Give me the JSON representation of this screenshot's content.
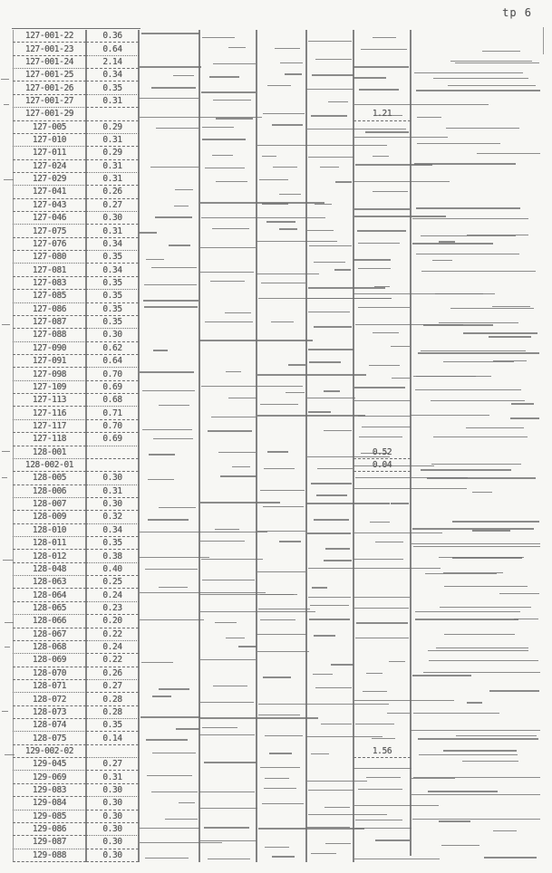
{
  "page": {
    "corner_label": "tp 6"
  },
  "colors": {
    "paper": "#f7f7f4",
    "ink": "#565656",
    "line": "#6f6f6f"
  },
  "table": {
    "extra_value_column": 7,
    "rows": [
      {
        "id": "127-001-22",
        "value": "0.36",
        "extra": ""
      },
      {
        "id": "127-001-23",
        "value": "0.64",
        "extra": ""
      },
      {
        "id": "127-001-24",
        "value": "2.14",
        "extra": ""
      },
      {
        "id": "127-001-25",
        "value": "0.34",
        "extra": ""
      },
      {
        "id": "127-001-26",
        "value": "0.35",
        "extra": ""
      },
      {
        "id": "127-001-27",
        "value": "0.31",
        "extra": ""
      },
      {
        "id": "127-001-29",
        "value": "",
        "extra": "1.21"
      },
      {
        "id": "127-005",
        "value": "0.29",
        "extra": ""
      },
      {
        "id": "127-010",
        "value": "0.31",
        "extra": ""
      },
      {
        "id": "127-011",
        "value": "0.29",
        "extra": ""
      },
      {
        "id": "127-024",
        "value": "0.31",
        "extra": ""
      },
      {
        "id": "127-029",
        "value": "0.31",
        "extra": ""
      },
      {
        "id": "127-041",
        "value": "0.26",
        "extra": ""
      },
      {
        "id": "127-043",
        "value": "0.27",
        "extra": ""
      },
      {
        "id": "127-046",
        "value": "0.30",
        "extra": ""
      },
      {
        "id": "127-075",
        "value": "0.31",
        "extra": ""
      },
      {
        "id": "127-076",
        "value": "0.34",
        "extra": ""
      },
      {
        "id": "127-080",
        "value": "0.35",
        "extra": ""
      },
      {
        "id": "127-081",
        "value": "0.34",
        "extra": ""
      },
      {
        "id": "127-083",
        "value": "0.35",
        "extra": ""
      },
      {
        "id": "127-085",
        "value": "0.35",
        "extra": ""
      },
      {
        "id": "127-086",
        "value": "0.35",
        "extra": ""
      },
      {
        "id": "127-087",
        "value": "0.35",
        "extra": ""
      },
      {
        "id": "127-088",
        "value": "0.30",
        "extra": ""
      },
      {
        "id": "127-090",
        "value": "0.62",
        "extra": ""
      },
      {
        "id": "127-091",
        "value": "0.64",
        "extra": ""
      },
      {
        "id": "127-098",
        "value": "0.70",
        "extra": ""
      },
      {
        "id": "127-109",
        "value": "0.69",
        "extra": ""
      },
      {
        "id": "127-113",
        "value": "0.68",
        "extra": ""
      },
      {
        "id": "127-116",
        "value": "0.71",
        "extra": ""
      },
      {
        "id": "127-117",
        "value": "0.70",
        "extra": ""
      },
      {
        "id": "127-118",
        "value": "0.69",
        "extra": ""
      },
      {
        "id": "128-001",
        "value": "",
        "extra": "0.52"
      },
      {
        "id": "128-002-01",
        "value": "",
        "extra": "0.04"
      },
      {
        "id": "128-005",
        "value": "0.30",
        "extra": ""
      },
      {
        "id": "128-006",
        "value": "0.31",
        "extra": ""
      },
      {
        "id": "128-007",
        "value": "0.30",
        "extra": ""
      },
      {
        "id": "128-009",
        "value": "0.32",
        "extra": ""
      },
      {
        "id": "128-010",
        "value": "0.34",
        "extra": ""
      },
      {
        "id": "128-011",
        "value": "0.35",
        "extra": ""
      },
      {
        "id": "128-012",
        "value": "0.38",
        "extra": ""
      },
      {
        "id": "128-048",
        "value": "0.40",
        "extra": ""
      },
      {
        "id": "128-063",
        "value": "0.25",
        "extra": ""
      },
      {
        "id": "128-064",
        "value": "0.24",
        "extra": ""
      },
      {
        "id": "128-065",
        "value": "0.23",
        "extra": ""
      },
      {
        "id": "128-066",
        "value": "0.20",
        "extra": ""
      },
      {
        "id": "128-067",
        "value": "0.22",
        "extra": ""
      },
      {
        "id": "128-068",
        "value": "0.24",
        "extra": ""
      },
      {
        "id": "128-069",
        "value": "0.22",
        "extra": ""
      },
      {
        "id": "128-070",
        "value": "0.26",
        "extra": ""
      },
      {
        "id": "128-071",
        "value": "0.27",
        "extra": ""
      },
      {
        "id": "128-072",
        "value": "0.28",
        "extra": ""
      },
      {
        "id": "128-073",
        "value": "0.28",
        "extra": ""
      },
      {
        "id": "128-074",
        "value": "0.35",
        "extra": ""
      },
      {
        "id": "128-075",
        "value": "0.14",
        "extra": ""
      },
      {
        "id": "129-002-02",
        "value": "",
        "extra": "1.56"
      },
      {
        "id": "129-045",
        "value": "0.27",
        "extra": ""
      },
      {
        "id": "129-069",
        "value": "0.31",
        "extra": ""
      },
      {
        "id": "129-083",
        "value": "0.30",
        "extra": ""
      },
      {
        "id": "129-084",
        "value": "0.30",
        "extra": ""
      },
      {
        "id": "129-085",
        "value": "0.30",
        "extra": ""
      },
      {
        "id": "129-086",
        "value": "0.30",
        "extra": ""
      },
      {
        "id": "129-087",
        "value": "0.30",
        "extra": ""
      },
      {
        "id": "129-088",
        "value": "0.30",
        "extra": ""
      }
    ]
  }
}
